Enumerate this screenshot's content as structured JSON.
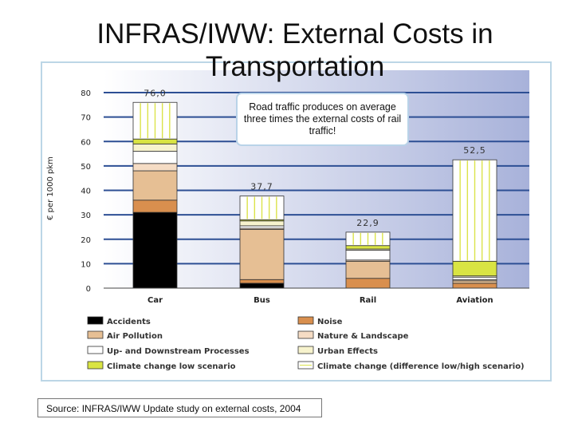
{
  "title": "INFRAS/IWW: External Costs in Transportation",
  "callout": "Road traffic produces on average three times the external costs of rail traffic!",
  "source": "Source: INFRAS/IWW Update study on external costs, 2004",
  "chart_data": {
    "type": "bar",
    "stacked": true,
    "ylabel": "€ per 1000 pkm",
    "ylim": [
      0,
      80
    ],
    "yticks": [
      0,
      10,
      20,
      30,
      40,
      50,
      60,
      70,
      80
    ],
    "grid": true,
    "legend_position": "bottom",
    "categories": [
      "Car",
      "Bus",
      "Rail",
      "Aviation"
    ],
    "totals": [
      "76,0",
      "37,7",
      "22,9",
      "52,5"
    ],
    "total_values": [
      76.0,
      37.7,
      22.9,
      52.5
    ],
    "series": [
      {
        "name": "Accidents",
        "color": "#000000",
        "pattern": "solid",
        "values": [
          31,
          2,
          0,
          0
        ]
      },
      {
        "name": "Noise",
        "color": "#d98f4e",
        "pattern": "solid",
        "values": [
          5,
          1.5,
          4,
          2
        ]
      },
      {
        "name": "Air Pollution",
        "color": "#e6bf94",
        "pattern": "solid",
        "values": [
          12,
          20.5,
          7,
          1
        ]
      },
      {
        "name": "Nature & Landscape",
        "color": "#f5dcc4",
        "pattern": "solid",
        "values": [
          3,
          0.5,
          0.5,
          0.5
        ]
      },
      {
        "name": "Up- and Downstream Processes",
        "color": "#ffffff",
        "pattern": "solid",
        "values": [
          5,
          1,
          4,
          1
        ]
      },
      {
        "name": "Urban Effects",
        "color": "#f7f3cd",
        "pattern": "solid",
        "values": [
          3,
          2,
          0.5,
          0.5
        ]
      },
      {
        "name": "Climate change low scenario",
        "color": "#d9e443",
        "pattern": "solid",
        "values": [
          2,
          0.5,
          1.4,
          6
        ]
      },
      {
        "name": "Climate change (difference low/high scenario)",
        "color": "#ffffff",
        "pattern": "dotted",
        "values": [
          15,
          9.7,
          5.5,
          41.5
        ]
      }
    ],
    "legend_order": [
      "Accidents",
      "Noise",
      "Air Pollution",
      "Nature & Landscape",
      "Up- and Downstream Processes",
      "Urban Effects",
      "Climate change low scenario",
      "Climate change (difference low/high scenario)"
    ]
  }
}
